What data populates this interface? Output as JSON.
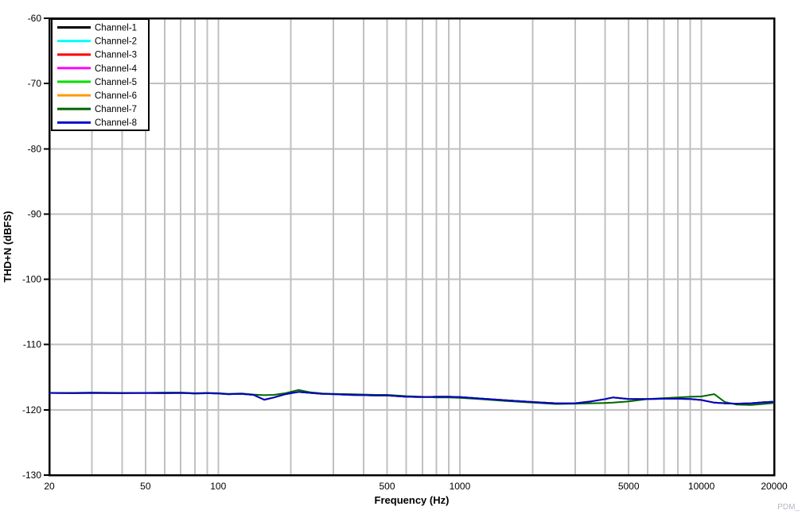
{
  "watermark": "PDM_",
  "chart_data": {
    "type": "line",
    "title": "",
    "xlabel": "Frequency (Hz)",
    "ylabel": "THD+N (dBFS)",
    "x_scale": "log",
    "xlim": [
      20,
      20000
    ],
    "ylim": [
      -130,
      -60
    ],
    "grid": true,
    "grid_color": "#c0c0c0",
    "frame_color": "#000000",
    "legend_position": "top-left",
    "x_ticks": [
      {
        "value": 20,
        "label": "20"
      },
      {
        "value": 50,
        "label": "50"
      },
      {
        "value": 100,
        "label": "100"
      },
      {
        "value": 500,
        "label": "500"
      },
      {
        "value": 1000,
        "label": "1000"
      },
      {
        "value": 5000,
        "label": "5000"
      },
      {
        "value": 10000,
        "label": "10000"
      },
      {
        "value": 20000,
        "label": "20000"
      }
    ],
    "y_ticks": [
      {
        "value": -60,
        "label": "-60"
      },
      {
        "value": -70,
        "label": "-70"
      },
      {
        "value": -80,
        "label": "-80"
      },
      {
        "value": -90,
        "label": "-90"
      },
      {
        "value": -100,
        "label": "-100"
      },
      {
        "value": -110,
        "label": "-110"
      },
      {
        "value": -120,
        "label": "-120"
      },
      {
        "value": -130,
        "label": "-130"
      }
    ],
    "x_minor_gridlines": [
      30,
      40,
      50,
      60,
      70,
      80,
      90,
      100,
      200,
      300,
      400,
      500,
      600,
      700,
      800,
      900,
      1000,
      2000,
      3000,
      4000,
      5000,
      6000,
      7000,
      8000,
      9000,
      10000
    ],
    "y_gridlines": [
      -70,
      -80,
      -90,
      -100,
      -110,
      -120
    ],
    "frequencies": [
      20,
      25,
      30,
      40,
      50,
      60,
      70,
      80,
      90,
      100,
      110,
      125,
      140,
      155,
      170,
      190,
      215,
      240,
      270,
      300,
      350,
      400,
      450,
      500,
      600,
      700,
      800,
      900,
      1000,
      1200,
      1500,
      2000,
      2500,
      3000,
      3500,
      4000,
      4300,
      5000,
      6000,
      7000,
      8000,
      9000,
      10000,
      11300,
      12500,
      14000,
      16000,
      18000,
      20000
    ],
    "values": {
      "baseline": [
        -117.4,
        -117.45,
        -117.4,
        -117.45,
        -117.4,
        -117.45,
        -117.4,
        -117.5,
        -117.45,
        -117.5,
        -117.6,
        -117.55,
        -117.7,
        -118.45,
        -118.1,
        -117.6,
        -117.25,
        -117.4,
        -117.55,
        -117.6,
        -117.7,
        -117.75,
        -117.8,
        -117.8,
        -118.0,
        -118.05,
        -118.0,
        -118.0,
        -118.05,
        -118.25,
        -118.5,
        -118.8,
        -119.0,
        -119.0,
        -118.7,
        -118.35,
        -118.1,
        -118.35,
        -118.35,
        -118.3,
        -118.3,
        -118.35,
        -118.5,
        -118.9,
        -119.0,
        -119.05,
        -119.0,
        -118.85,
        -118.75
      ],
      "channel7": [
        -117.4,
        -117.4,
        -117.35,
        -117.4,
        -117.4,
        -117.35,
        -117.35,
        -117.45,
        -117.4,
        -117.45,
        -117.55,
        -117.5,
        -117.65,
        -117.75,
        -117.7,
        -117.45,
        -116.95,
        -117.3,
        -117.5,
        -117.55,
        -117.6,
        -117.65,
        -117.7,
        -117.7,
        -117.9,
        -118.0,
        -118.1,
        -118.1,
        -118.15,
        -118.35,
        -118.6,
        -118.9,
        -119.1,
        -119.05,
        -119.0,
        -118.95,
        -118.9,
        -118.7,
        -118.35,
        -118.2,
        -118.1,
        -118.0,
        -117.95,
        -117.6,
        -118.8,
        -119.2,
        -119.25,
        -119.1,
        -118.95
      ]
    },
    "series": [
      {
        "name": "Channel-1",
        "color": "#000000",
        "values_key": "baseline"
      },
      {
        "name": "Channel-2",
        "color": "#00FFFF",
        "values_key": "baseline"
      },
      {
        "name": "Channel-3",
        "color": "#FF0000",
        "values_key": "baseline"
      },
      {
        "name": "Channel-4",
        "color": "#FF00FF",
        "values_key": "baseline"
      },
      {
        "name": "Channel-5",
        "color": "#00DD00",
        "values_key": "baseline"
      },
      {
        "name": "Channel-6",
        "color": "#FF9900",
        "values_key": "baseline"
      },
      {
        "name": "Channel-7",
        "color": "#006600",
        "values_key": "channel7"
      },
      {
        "name": "Channel-8",
        "color": "#0000CC",
        "values_key": "baseline"
      }
    ],
    "watermark_color": "#b3b8c3"
  }
}
